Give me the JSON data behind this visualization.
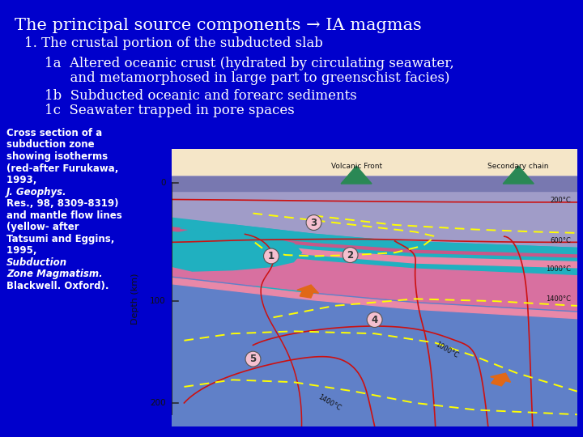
{
  "background_color": "#0000cc",
  "title_line": "The principal source components → IA magmas",
  "subtitle_line": "1. The crustal portion of the subducted slab",
  "bullet1a_line1": "1a  Altered oceanic crust (hydrated by circulating seawater,",
  "bullet1a_line2": "      and metamorphosed in large part to greenschist facies)",
  "bullet1b": "1b  Subducted oceanic and forearc sediments",
  "bullet1c": "1c  Seawater trapped in pore spaces",
  "caption_lines": [
    "Cross section of a",
    "subduction zone",
    "showing isotherms",
    "(red-after Furukawa,",
    "1993, ",
    "J. Geophys.",
    "Res., 98, 8309-8319)",
    "and mantle flow lines",
    "(yellow- after",
    "Tatsumi and Eggins,",
    "1995, ",
    "Subduction",
    "Zone Magmatism.",
    "Blackwell. Oxford)."
  ],
  "text_color": "#ffffff",
  "title_fontsize": 15,
  "subtitle_fontsize": 12,
  "bullet_fontsize": 12,
  "caption_fontsize": 8.5
}
